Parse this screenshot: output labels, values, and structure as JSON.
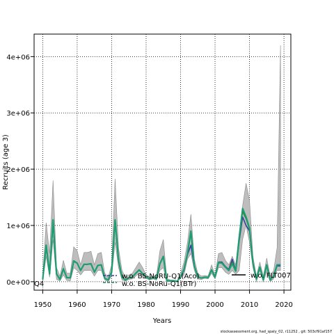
{
  "chart_data": {
    "type": "line",
    "xlabel": "Years",
    "ylabel": "Recruits (age 3)",
    "xlim": [
      1947.5,
      2022
    ],
    "ylim": [
      -150000,
      4400000
    ],
    "grid": true,
    "x_ticks": [
      {
        "value": 1950,
        "label": "1950"
      },
      {
        "value": 1960,
        "label": "1960"
      },
      {
        "value": 1970,
        "label": "1970"
      },
      {
        "value": 1980,
        "label": "1980"
      },
      {
        "value": 1990,
        "label": "1990"
      },
      {
        "value": 2000,
        "label": "2000"
      },
      {
        "value": 2010,
        "label": "2010"
      },
      {
        "value": 2020,
        "label": "2020"
      }
    ],
    "y_ticks": [
      {
        "value": 0,
        "label": "0e+00"
      },
      {
        "value": 1000000,
        "label": "1e+06"
      },
      {
        "value": 2000000,
        "label": "2e+06"
      },
      {
        "value": 3000000,
        "label": "3e+06"
      },
      {
        "value": 4000000,
        "label": "4e+06"
      }
    ],
    "x": [
      1950,
      1951,
      1952,
      1953,
      1954,
      1955,
      1956,
      1957,
      1958,
      1959,
      1960,
      1961,
      1962,
      1963,
      1964,
      1965,
      1966,
      1967,
      1968,
      1969,
      1970,
      1971,
      1972,
      1973,
      1974,
      1975,
      1976,
      1977,
      1978,
      1979,
      1980,
      1981,
      1982,
      1983,
      1984,
      1985,
      1986,
      1987,
      1988,
      1989,
      1990,
      1991,
      1992,
      1993,
      1994,
      1995,
      1996,
      1997,
      1998,
      1999,
      2000,
      2001,
      2002,
      2003,
      2004,
      2005,
      2006,
      2007,
      2008,
      2009,
      2010,
      2011,
      2012,
      2013,
      2014,
      2015,
      2016,
      2017,
      2018,
      2019
    ],
    "band": {
      "lower": [
        10000,
        450000,
        80000,
        750000,
        40000,
        15000,
        120000,
        20000,
        15000,
        250000,
        200000,
        120000,
        200000,
        200000,
        200000,
        100000,
        200000,
        200000,
        30000,
        0,
        100000,
        700000,
        250000,
        30000,
        10000,
        40000,
        50000,
        100000,
        150000,
        80000,
        60000,
        30000,
        50000,
        30000,
        200000,
        250000,
        0,
        10000,
        5000,
        0,
        60000,
        120000,
        400000,
        500000,
        200000,
        50000,
        40000,
        60000,
        50000,
        150000,
        50000,
        250000,
        250000,
        170000,
        130000,
        200000,
        130000,
        200000,
        750000,
        1000000,
        700000,
        250000,
        0,
        200000,
        0,
        180000,
        0,
        50000,
        200000,
        200000
      ],
      "upper": [
        100000,
        1050000,
        500000,
        1800000,
        250000,
        100000,
        380000,
        150000,
        150000,
        620000,
        550000,
        300000,
        520000,
        520000,
        540000,
        300000,
        500000,
        520000,
        150000,
        80000,
        300000,
        1830000,
        600000,
        200000,
        80000,
        120000,
        150000,
        250000,
        350000,
        250000,
        120000,
        80000,
        100000,
        100000,
        550000,
        750000,
        60000,
        30000,
        30000,
        10000,
        150000,
        350000,
        700000,
        1200000,
        400000,
        150000,
        100000,
        110000,
        100000,
        300000,
        120000,
        500000,
        520000,
        380000,
        300000,
        450000,
        300000,
        850000,
        1350000,
        1750000,
        1450000,
        450000,
        100000,
        350000,
        100000,
        420000,
        100000,
        200000,
        600000,
        4200000
      ]
    },
    "series": [
      {
        "name": "",
        "color": "#3340a0",
        "values": [
          40000,
          640000,
          140000,
          1050000,
          140000,
          40000,
          230000,
          70000,
          70000,
          360000,
          330000,
          200000,
          310000,
          310000,
          320000,
          170000,
          290000,
          300000,
          60000,
          30000,
          170000,
          1100000,
          370000,
          80000,
          30000,
          70000,
          80000,
          150000,
          210000,
          140000,
          90000,
          50000,
          75000,
          55000,
          320000,
          450000,
          20000,
          15000,
          15000,
          5000,
          95000,
          200000,
          480000,
          650000,
          270000,
          85000,
          65000,
          80000,
          75000,
          210000,
          80000,
          350000,
          350000,
          270000,
          220000,
          400000,
          200000,
          720000,
          1150000,
          1000000,
          900000,
          320000,
          50000,
          260000,
          35000,
          300000,
          30000,
          100000,
          280000,
          280000
        ]
      },
      {
        "name": "",
        "color": "#2e7d5a",
        "values": [
          40000,
          650000,
          140000,
          1100000,
          140000,
          40000,
          230000,
          70000,
          70000,
          370000,
          330000,
          200000,
          310000,
          310000,
          320000,
          170000,
          290000,
          300000,
          60000,
          30000,
          170000,
          1100000,
          380000,
          80000,
          30000,
          70000,
          80000,
          150000,
          210000,
          140000,
          90000,
          50000,
          75000,
          55000,
          320000,
          450000,
          20000,
          15000,
          15000,
          5000,
          95000,
          220000,
          500000,
          900000,
          280000,
          85000,
          65000,
          80000,
          75000,
          210000,
          80000,
          340000,
          330000,
          260000,
          200000,
          320000,
          190000,
          780000,
          1280000,
          1150000,
          950000,
          330000,
          50000,
          260000,
          35000,
          300000,
          30000,
          100000,
          300000,
          300000
        ]
      },
      {
        "name": "",
        "color": "#3d7a2a",
        "values": [
          40000,
          640000,
          140000,
          1080000,
          140000,
          40000,
          230000,
          70000,
          70000,
          365000,
          330000,
          200000,
          310000,
          310000,
          320000,
          170000,
          290000,
          300000,
          60000,
          30000,
          170000,
          1100000,
          375000,
          80000,
          30000,
          70000,
          80000,
          150000,
          210000,
          140000,
          90000,
          50000,
          75000,
          55000,
          320000,
          450000,
          20000,
          15000,
          15000,
          5000,
          95000,
          215000,
          490000,
          870000,
          275000,
          85000,
          65000,
          80000,
          75000,
          210000,
          80000,
          345000,
          340000,
          265000,
          210000,
          350000,
          195000,
          760000,
          1250000,
          1120000,
          930000,
          325000,
          50000,
          260000,
          35000,
          300000,
          30000,
          100000,
          300000,
          300000
        ]
      },
      {
        "name": "",
        "color": "#1a9e72",
        "values": [
          40000,
          650000,
          140000,
          1100000,
          140000,
          40000,
          230000,
          70000,
          70000,
          370000,
          330000,
          200000,
          310000,
          310000,
          320000,
          170000,
          290000,
          300000,
          60000,
          30000,
          170000,
          1100000,
          380000,
          80000,
          30000,
          70000,
          80000,
          150000,
          210000,
          140000,
          90000,
          50000,
          75000,
          55000,
          320000,
          450000,
          20000,
          15000,
          15000,
          5000,
          95000,
          220000,
          500000,
          900000,
          280000,
          85000,
          65000,
          80000,
          75000,
          210000,
          80000,
          340000,
          330000,
          260000,
          200000,
          320000,
          190000,
          780000,
          1300000,
          1150000,
          950000,
          330000,
          50000,
          260000,
          35000,
          300000,
          30000,
          100000,
          300000,
          300000
        ]
      }
    ],
    "legend": {
      "placement": "bottom",
      "entries": [
        {
          "label": "w.o. BS-NoRU-Q1(Aco)",
          "color": "#3340a0",
          "dash": "4,2"
        },
        {
          "label": "w.o. BS-NoRu-Q1(BTr)",
          "color": "#2e7d5a",
          "dash": "4,2"
        },
        {
          "label": "w.o. FLT007",
          "color": "#000000",
          "dash": ""
        }
      ],
      "partial_label": "Q4"
    },
    "footer": "stockassessment.org, had_spaly_02, r11252 , git: 503cf91af157"
  }
}
